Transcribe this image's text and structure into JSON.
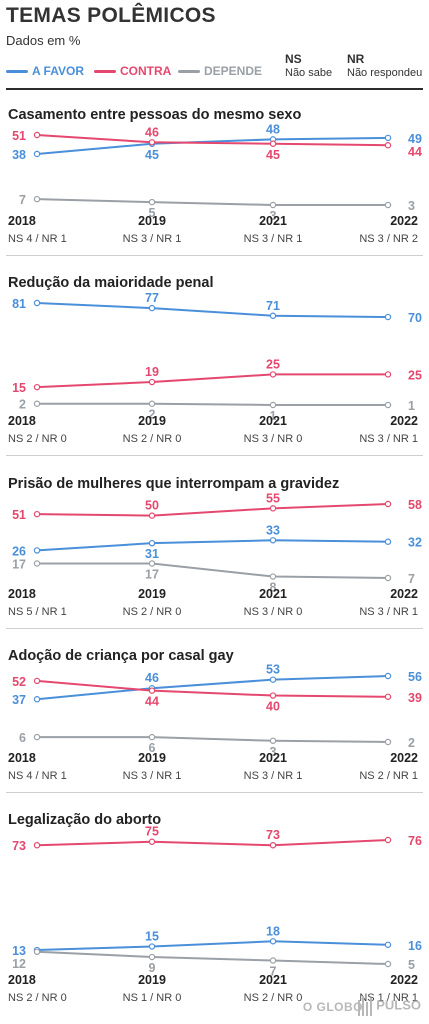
{
  "header": {
    "title": "TEMAS POLÊMICOS",
    "subtitle": "Dados em %"
  },
  "legend": {
    "a_favor": "A FAVOR",
    "contra": "CONTRA",
    "depende": "DEPENDE",
    "ns_code": "NS",
    "ns_text": "Não sabe",
    "nr_code": "NR",
    "nr_text": "Não respondeu"
  },
  "colors": {
    "a_favor": "#4a8fd9",
    "contra": "#e5486e",
    "depende": "#9aa0a6"
  },
  "footer": {
    "globo": "O GLOBO",
    "pulso": "PULSO"
  },
  "chart_data": [
    {
      "type": "line",
      "title": "Casamento entre pessoas do mesmo sexo",
      "x": [
        "2018",
        "2019",
        "2021",
        "2022"
      ],
      "ylim": [
        0,
        100
      ],
      "series": [
        {
          "name": "A FAVOR",
          "values": [
            38,
            45,
            48,
            49
          ]
        },
        {
          "name": "CONTRA",
          "values": [
            51,
            46,
            45,
            44
          ]
        },
        {
          "name": "DEPENDE",
          "values": [
            7,
            5,
            3,
            3
          ]
        }
      ],
      "footnotes": [
        "NS 4 / NR 1",
        "NS 3 / NR 1",
        "NS 3 / NR 1",
        "NS 3 / NR 2"
      ]
    },
    {
      "type": "line",
      "title": "Redução da maioridade penal",
      "x": [
        "2018",
        "2019",
        "2021",
        "2022"
      ],
      "ylim": [
        0,
        100
      ],
      "series": [
        {
          "name": "A FAVOR",
          "values": [
            81,
            77,
            71,
            70
          ]
        },
        {
          "name": "CONTRA",
          "values": [
            15,
            19,
            25,
            25
          ]
        },
        {
          "name": "DEPENDE",
          "values": [
            2,
            2,
            1,
            1
          ]
        }
      ],
      "footnotes": [
        "NS 2 / NR 0",
        "NS 2 / NR 0",
        "NS 3 / NR 0",
        "NS 3 / NR 1"
      ]
    },
    {
      "type": "line",
      "title": "Prisão de mulheres que interrompam a gravidez",
      "x": [
        "2018",
        "2019",
        "2021",
        "2022"
      ],
      "ylim": [
        0,
        100
      ],
      "series": [
        {
          "name": "A FAVOR",
          "values": [
            26,
            31,
            33,
            32
          ]
        },
        {
          "name": "CONTRA",
          "values": [
            51,
            50,
            55,
            58
          ]
        },
        {
          "name": "DEPENDE",
          "values": [
            17,
            17,
            8,
            7
          ]
        }
      ],
      "footnotes": [
        "NS 5 / NR 1",
        "NS 2 / NR 0",
        "NS 3 / NR 0",
        "NS 3 / NR 1"
      ]
    },
    {
      "type": "line",
      "title": "Adoção de criança por casal gay",
      "x": [
        "2018",
        "2019",
        "2021",
        "2022"
      ],
      "ylim": [
        0,
        100
      ],
      "series": [
        {
          "name": "A FAVOR",
          "values": [
            37,
            46,
            53,
            56
          ]
        },
        {
          "name": "CONTRA",
          "values": [
            52,
            44,
            40,
            39
          ]
        },
        {
          "name": "DEPENDE",
          "values": [
            6,
            6,
            3,
            2
          ]
        }
      ],
      "footnotes": [
        "NS 4 / NR 1",
        "NS 3 / NR 1",
        "NS 3 / NR 1",
        "NS 2 / NR 1"
      ]
    },
    {
      "type": "line",
      "title": "Legalização do aborto",
      "x": [
        "2018",
        "2019",
        "2021",
        "2022"
      ],
      "ylim": [
        0,
        100
      ],
      "series": [
        {
          "name": "A FAVOR",
          "values": [
            13,
            15,
            18,
            16
          ]
        },
        {
          "name": "CONTRA",
          "values": [
            73,
            75,
            73,
            76
          ]
        },
        {
          "name": "DEPENDE",
          "values": [
            12,
            9,
            7,
            5
          ]
        }
      ],
      "footnotes": [
        "NS 2 / NR 0",
        "NS 1 / NR 0",
        "NS 2 / NR 0",
        "NS 1 / NR 1"
      ]
    }
  ]
}
